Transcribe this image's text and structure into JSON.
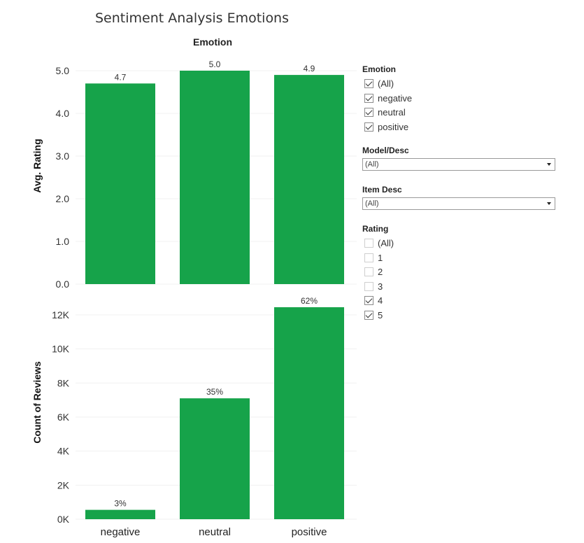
{
  "title": "Sentiment Analysis Emotions",
  "column_header": "Emotion",
  "chart_data": [
    {
      "type": "bar",
      "categories": [
        "negative",
        "neutral",
        "positive"
      ],
      "values": [
        4.7,
        5.0,
        4.9
      ],
      "data_labels": [
        "4.7",
        "5.0",
        "4.9"
      ],
      "ylabel": "Avg. Rating",
      "ylim": [
        0,
        5.0
      ],
      "yticks": [
        0,
        1,
        2,
        3,
        4,
        5
      ],
      "ytick_labels": [
        "0.0",
        "1.0",
        "2.0",
        "3.0",
        "4.0",
        "5.0"
      ],
      "color": "#16a34a",
      "grid": true
    },
    {
      "type": "bar",
      "categories": [
        "negative",
        "neutral",
        "positive"
      ],
      "values": [
        550,
        7100,
        12450
      ],
      "data_labels": [
        "3%",
        "35%",
        "62%"
      ],
      "ylabel": "Count of Reviews",
      "ylim": [
        0,
        12000
      ],
      "yticks": [
        0,
        2000,
        4000,
        6000,
        8000,
        10000,
        12000
      ],
      "ytick_labels": [
        "0K",
        "2K",
        "4K",
        "6K",
        "8K",
        "10K",
        "12K"
      ],
      "color": "#16a34a",
      "grid": true
    }
  ],
  "filters": {
    "emotion": {
      "title": "Emotion",
      "options": [
        {
          "label": "(All)",
          "checked": true
        },
        {
          "label": "negative",
          "checked": true
        },
        {
          "label": "neutral",
          "checked": true
        },
        {
          "label": "positive",
          "checked": true
        }
      ]
    },
    "model_desc": {
      "title": "Model/Desc",
      "value": "(All)"
    },
    "item_desc": {
      "title": "Item Desc",
      "value": "(All)"
    },
    "rating": {
      "title": "Rating",
      "options": [
        {
          "label": "(All)",
          "checked": false
        },
        {
          "label": "1",
          "checked": false
        },
        {
          "label": "2",
          "checked": false
        },
        {
          "label": "3",
          "checked": false
        },
        {
          "label": "4",
          "checked": true
        },
        {
          "label": "5",
          "checked": true
        }
      ]
    }
  }
}
